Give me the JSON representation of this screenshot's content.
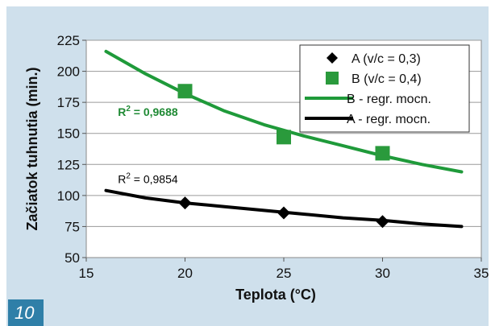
{
  "figure_number": "10",
  "colors": {
    "panel_bg": "#cfe0ec",
    "plot_bg": "#ffffff",
    "series_a": "#000000",
    "series_b": "#2a9a3c",
    "fit_b": "#1f9a3a",
    "badge": "#2f7fa8"
  },
  "chart_data": {
    "type": "scatter",
    "title": "",
    "xlabel": "Teplota (°C)",
    "ylabel": "Začiatok tuhnutia (min.)",
    "xlim": [
      15,
      35
    ],
    "ylim": [
      50,
      225
    ],
    "xticks": [
      15,
      20,
      25,
      30,
      35
    ],
    "yticks": [
      50,
      75,
      100,
      125,
      150,
      175,
      200,
      225
    ],
    "grid": "horizontal",
    "legend_position": "top-right",
    "series": [
      {
        "name": "A (v/c = 0,3)",
        "kind": "points",
        "marker": "diamond",
        "color": "#000000",
        "x": [
          20,
          25,
          30
        ],
        "y": [
          94,
          86,
          79
        ]
      },
      {
        "name": "B (v/c = 0,4)",
        "kind": "points",
        "marker": "square",
        "color": "#2a9a3c",
        "x": [
          20,
          25,
          30
        ],
        "y": [
          184,
          147,
          134
        ]
      },
      {
        "name": "B - regr. mocn.",
        "kind": "fit",
        "color": "#1f9a3a",
        "x": [
          16,
          18,
          20,
          22,
          24,
          26,
          28,
          30,
          32,
          34
        ],
        "y": [
          216,
          198,
          182,
          168,
          157,
          148,
          140,
          132,
          125,
          119
        ]
      },
      {
        "name": "A - regr. mocn.",
        "kind": "fit",
        "color": "#000000",
        "x": [
          16,
          18,
          20,
          22,
          24,
          26,
          28,
          30,
          32,
          34
        ],
        "y": [
          104,
          98,
          94,
          91,
          88,
          85,
          82,
          80,
          77,
          75
        ]
      }
    ],
    "annotations": [
      {
        "r2_label": "R",
        "r2_sup": "2",
        "value_text": " = 0,9688",
        "color": "#1f8a34",
        "bold": true,
        "x": 16.6,
        "y": 164
      },
      {
        "r2_label": "R",
        "r2_sup": "2",
        "value_text": " = 0,9854",
        "color": "#000000",
        "bold": false,
        "x": 16.6,
        "y": 110
      }
    ]
  }
}
